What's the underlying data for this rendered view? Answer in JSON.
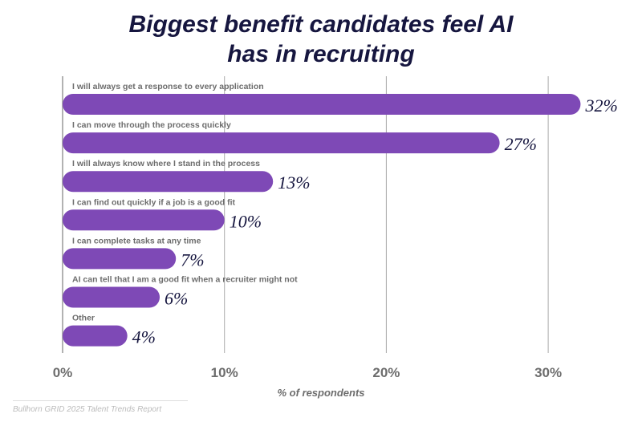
{
  "chart_data": {
    "type": "bar",
    "orientation": "horizontal",
    "title": "Biggest benefit candidates feel AI has in recruiting",
    "title_lines": [
      "Biggest benefit candidates feel AI",
      "has in recruiting"
    ],
    "categories": [
      "I will always get a response to every application",
      "I can move through the process quickly",
      "I will always know where I stand in the process",
      "I can find out quickly if a job is a good fit",
      "I can complete tasks at any time",
      "AI can tell that I am a good fit when a recruiter might not",
      "Other"
    ],
    "values": [
      32,
      27,
      13,
      10,
      7,
      6,
      4
    ],
    "data_labels": [
      "32%",
      "27%",
      "13%",
      "10%",
      "7%",
      "6%",
      "4%"
    ],
    "xlabel": "% of respondents",
    "xlim": [
      0,
      30
    ],
    "xticks": [
      0,
      10,
      20,
      30
    ],
    "xtick_labels": [
      "0%",
      "10%",
      "20%",
      "30%"
    ],
    "grid": true,
    "bar_color": "#7e49b6",
    "label_color": "#16163f"
  },
  "source": "Bullhorn GRID 2025 Talent Trends Report"
}
